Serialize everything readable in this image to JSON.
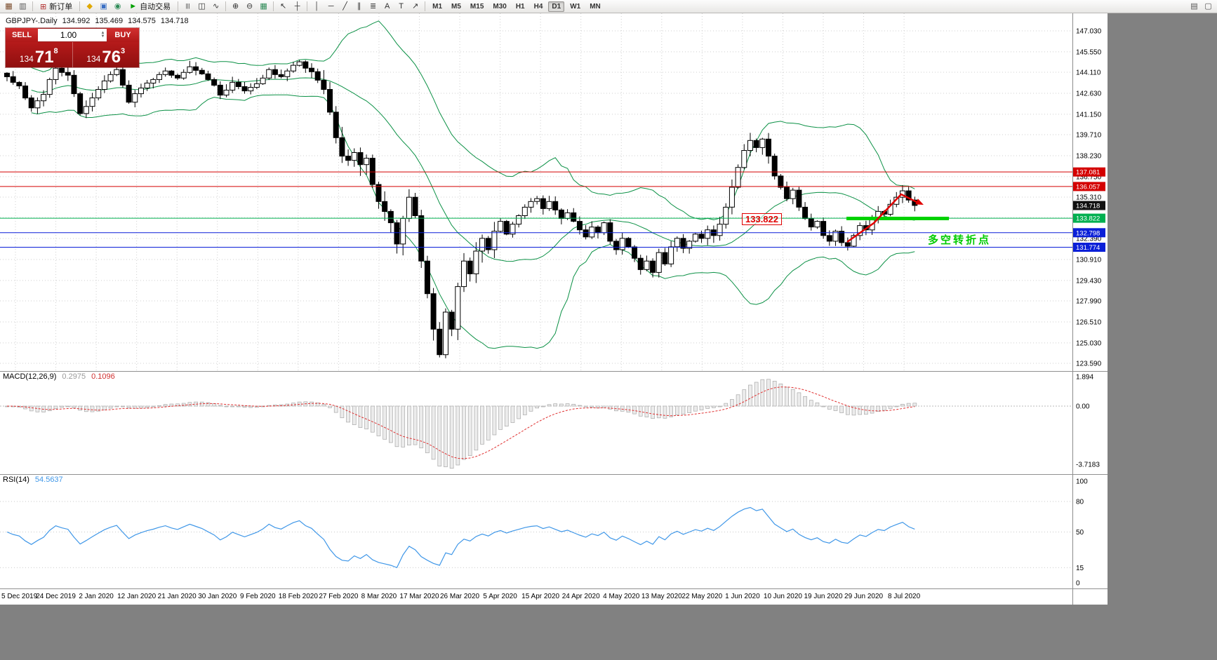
{
  "header": {
    "symbol": "GBPJPY-.Daily",
    "open": "134.992",
    "high": "135.469",
    "low": "134.575",
    "close": "134.718"
  },
  "one_click": {
    "sell_label": "SELL",
    "buy_label": "BUY",
    "volume": "1.00",
    "sell_price_small": "134",
    "sell_price_big": "71",
    "sell_price_sup": "8",
    "buy_price_small": "134",
    "buy_price_big": "76",
    "buy_price_sup": "3"
  },
  "toolbar": {
    "items": [
      {
        "kind": "icon",
        "name": "new-chart-icon",
        "glyph": "▦",
        "color": "#7a4a2a"
      },
      {
        "kind": "icon",
        "name": "profiles-icon",
        "glyph": "▥",
        "color": "#555555"
      },
      {
        "kind": "sep"
      },
      {
        "kind": "button",
        "name": "new-order-button",
        "glyph": "⊞",
        "glyph_color": "#b33030",
        "label": "新订单"
      },
      {
        "kind": "sep"
      },
      {
        "kind": "icon",
        "name": "metaeditor-icon",
        "glyph": "◆",
        "color": "#e0a800"
      },
      {
        "kind": "icon",
        "name": "terminal-icon",
        "glyph": "▣",
        "color": "#3a6fc4"
      },
      {
        "kind": "icon",
        "name": "strategy-tester-icon",
        "glyph": "◉",
        "color": "#2e8b57"
      },
      {
        "kind": "button",
        "name": "autotrading-button",
        "glyph": "►",
        "glyph_color": "#00a000",
        "label": "自动交易"
      },
      {
        "kind": "sep"
      },
      {
        "kind": "icon",
        "name": "bar-chart-icon",
        "glyph": "|||",
        "color": "#333333",
        "small": true
      },
      {
        "kind": "icon",
        "name": "candlestick-chart-icon",
        "glyph": "◫",
        "color": "#333333"
      },
      {
        "kind": "icon",
        "name": "line-chart-icon",
        "glyph": "∿",
        "color": "#333333"
      },
      {
        "kind": "sep"
      },
      {
        "kind": "icon",
        "name": "zoom-in-icon",
        "glyph": "⊕",
        "color": "#333333"
      },
      {
        "kind": "icon",
        "name": "zoom-out-icon",
        "glyph": "⊖",
        "color": "#333333"
      },
      {
        "kind": "icon",
        "name": "indicators-icon",
        "glyph": "▦",
        "color": "#2e8b57"
      },
      {
        "kind": "sep"
      },
      {
        "kind": "icon",
        "name": "cursor-icon",
        "glyph": "↖",
        "color": "#333333"
      },
      {
        "kind": "icon",
        "name": "crosshair-icon",
        "glyph": "┼",
        "color": "#333333"
      },
      {
        "kind": "sep"
      },
      {
        "kind": "icon",
        "name": "vertical-line-icon",
        "glyph": "│",
        "color": "#333333"
      },
      {
        "kind": "icon",
        "name": "horizontal-line-icon",
        "glyph": "─",
        "color": "#333333"
      },
      {
        "kind": "icon",
        "name": "trendline-icon",
        "glyph": "╱",
        "color": "#333333"
      },
      {
        "kind": "icon",
        "name": "channel-icon",
        "glyph": "∥",
        "color": "#333333"
      },
      {
        "kind": "icon",
        "name": "fibonacci-icon",
        "glyph": "≣",
        "color": "#333333"
      },
      {
        "kind": "icon",
        "name": "text-icon",
        "glyph": "A",
        "color": "#333333"
      },
      {
        "kind": "icon",
        "name": "text-label-icon",
        "glyph": "T",
        "color": "#333333"
      },
      {
        "kind": "icon",
        "name": "arrows-icon",
        "glyph": "↗",
        "color": "#333333"
      },
      {
        "kind": "sep"
      },
      {
        "kind": "tf",
        "label": "M1"
      },
      {
        "kind": "tf",
        "label": "M5"
      },
      {
        "kind": "tf",
        "label": "M15"
      },
      {
        "kind": "tf",
        "label": "M30"
      },
      {
        "kind": "tf",
        "label": "H1"
      },
      {
        "kind": "tf",
        "label": "H4"
      },
      {
        "kind": "tf",
        "label": "D1",
        "active": true
      },
      {
        "kind": "tf",
        "label": "W1"
      },
      {
        "kind": "tf",
        "label": "MN"
      },
      {
        "kind": "spacer"
      },
      {
        "kind": "icon",
        "name": "windows-icon",
        "glyph": "▤",
        "color": "#555555"
      },
      {
        "kind": "icon",
        "name": "new-window-icon",
        "glyph": "▢",
        "color": "#555555"
      }
    ]
  },
  "price_axis": {
    "labels": [
      "147.030",
      "145.550",
      "144.110",
      "142.630",
      "141.150",
      "139.710",
      "138.230",
      "136.750",
      "135.310",
      "133.870",
      "132.390",
      "130.910",
      "129.430",
      "127.990",
      "126.510",
      "125.030",
      "123.590"
    ]
  },
  "date_axis": {
    "labels": [
      "5 Dec 2019",
      "24 Dec 2019",
      "2 Jan 2020",
      "12 Jan 2020",
      "21 Jan 2020",
      "30 Jan 2020",
      "9 Feb 2020",
      "18 Feb 2020",
      "27 Feb 2020",
      "8 Mar 2020",
      "17 Mar 2020",
      "26 Mar 2020",
      "5 Apr 2020",
      "15 Apr 2020",
      "24 Apr 2020",
      "4 May 2020",
      "13 May 2020",
      "22 May 2020",
      "1 Jun 2020",
      "10 Jun 2020",
      "19 Jun 2020",
      "29 Jun 2020",
      "8 Jul 2020"
    ]
  },
  "levels": [
    {
      "price": 137.081,
      "label": "137.081",
      "color": "#d40000"
    },
    {
      "price": 136.057,
      "label": "136.057",
      "color": "#d40000"
    },
    {
      "price": 134.718,
      "label": "134.718",
      "color": "#111111",
      "line": false
    },
    {
      "price": 133.822,
      "label": "133.822",
      "color": "#00b050"
    },
    {
      "price": 132.798,
      "label": "132.798",
      "color": "#0a1fd8"
    },
    {
      "price": 131.774,
      "label": "131.774",
      "color": "#0a1fd8"
    }
  ],
  "annotations": {
    "price_callout": "133.822",
    "note_text": "多空转折点",
    "note_color": "#00cc00",
    "arrow_color": "#e00000",
    "highlight_color": "#00d200"
  },
  "macd_panel": {
    "name": "MACD(12,26,9)",
    "value_main": "0.2975",
    "value_signal": "0.1096",
    "scale": [
      "1.894",
      "0.00",
      "-3.7183"
    ]
  },
  "rsi_panel": {
    "name": "RSI(14)",
    "value": "54.5637",
    "scale": [
      "100",
      "80",
      "50",
      "15",
      "0"
    ]
  },
  "chart_data": {
    "type": "candlestick",
    "symbol": "GBPJPY",
    "timeframe": "Daily",
    "ylim": [
      123.59,
      147.03
    ],
    "overlays": [
      "Bollinger Bands (20,2)"
    ],
    "sub_indicators": [
      "MACD(12,26,9)",
      "RSI(14)"
    ],
    "closes": [
      143.8,
      143.4,
      143.15,
      142.3,
      141.6,
      142.1,
      142.55,
      143.6,
      144.4,
      144.1,
      143.9,
      142.6,
      141.2,
      141.7,
      142.3,
      142.9,
      143.5,
      143.95,
      144.3,
      143.2,
      142.0,
      142.6,
      143.0,
      143.35,
      143.6,
      143.95,
      144.2,
      143.9,
      143.7,
      144.1,
      144.5,
      144.25,
      144.0,
      143.6,
      143.2,
      142.5,
      142.85,
      143.4,
      143.1,
      142.8,
      143.05,
      143.3,
      143.7,
      144.3,
      143.95,
      143.8,
      144.2,
      144.6,
      144.85,
      144.4,
      144.15,
      143.55,
      142.9,
      141.3,
      139.5,
      138.2,
      137.9,
      138.45,
      137.6,
      138.05,
      136.2,
      135.0,
      134.3,
      133.5,
      132.0,
      133.8,
      135.3,
      134.0,
      130.8,
      128.5,
      126.0,
      124.2,
      127.2,
      126.0,
      129.0,
      130.8,
      129.9,
      131.5,
      132.4,
      131.6,
      132.9,
      133.6,
      132.7,
      133.4,
      134.0,
      134.6,
      135.0,
      135.2,
      134.5,
      135.0,
      134.4,
      133.8,
      134.2,
      133.6,
      133.0,
      132.5,
      133.2,
      132.8,
      133.5,
      132.2,
      131.6,
      132.4,
      131.8,
      131.0,
      130.2,
      130.8,
      130.0,
      131.4,
      130.6,
      131.8,
      132.4,
      131.7,
      132.2,
      132.7,
      132.4,
      133.0,
      132.6,
      133.4,
      134.6,
      136.0,
      137.4,
      138.6,
      139.3,
      138.8,
      139.4,
      138.2,
      136.8,
      136.0,
      135.2,
      135.8,
      134.6,
      133.8,
      133.2,
      133.6,
      132.6,
      132.2,
      132.9,
      132.1,
      131.85,
      132.6,
      133.3,
      133.0,
      133.7,
      134.3,
      134.1,
      134.8,
      135.3,
      135.75,
      135.1,
      134.72
    ]
  }
}
